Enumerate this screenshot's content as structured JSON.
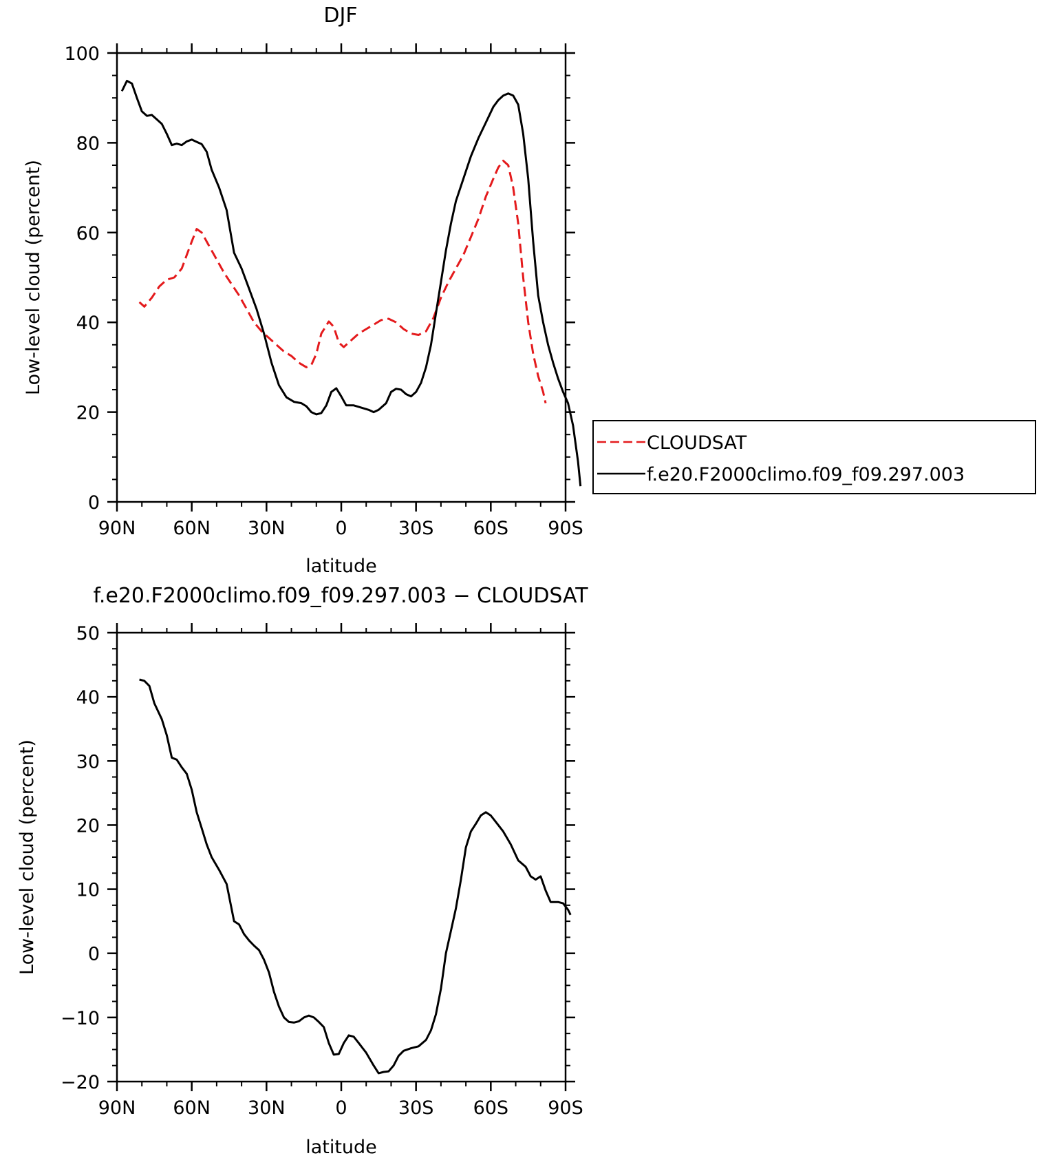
{
  "chart_data": [
    {
      "type": "line",
      "title": "DJF",
      "xlabel": "latitude",
      "ylabel": "Low-level cloud (percent)",
      "xlim": [
        90,
        -90
      ],
      "ylim": [
        0,
        100
      ],
      "x_ticks": [
        {
          "value": 90,
          "label": "90N"
        },
        {
          "value": 60,
          "label": "60N"
        },
        {
          "value": 30,
          "label": "30N"
        },
        {
          "value": 0,
          "label": "0"
        },
        {
          "value": -30,
          "label": "30S"
        },
        {
          "value": -60,
          "label": "60S"
        },
        {
          "value": -90,
          "label": "90S"
        }
      ],
      "y_ticks": [
        0,
        20,
        40,
        60,
        80,
        100
      ],
      "legend_position": "right",
      "series": [
        {
          "name": "CLOUDSAT",
          "color": "#e41a1c",
          "dash": "dashed",
          "points": [
            [
              81,
              44.5
            ],
            [
              79,
              43.5
            ],
            [
              76,
              45.5
            ],
            [
              73,
              48
            ],
            [
              70,
              49.5
            ],
            [
              67,
              50
            ],
            [
              64,
              52
            ],
            [
              62,
              55
            ],
            [
              60,
              58
            ],
            [
              58,
              60.8
            ],
            [
              56,
              60
            ],
            [
              53,
              57
            ],
            [
              50,
              54
            ],
            [
              47,
              51
            ],
            [
              44,
              48.5
            ],
            [
              41,
              46
            ],
            [
              38,
              43
            ],
            [
              35,
              40
            ],
            [
              32,
              38
            ],
            [
              29,
              36.5
            ],
            [
              26,
              35
            ],
            [
              23,
              33.5
            ],
            [
              20,
              32.5
            ],
            [
              17,
              31
            ],
            [
              14,
              30
            ],
            [
              12,
              30.5
            ],
            [
              10,
              33
            ],
            [
              8,
              37.5
            ],
            [
              5,
              40.2
            ],
            [
              3,
              39
            ],
            [
              1,
              35.5
            ],
            [
              -1,
              34.5
            ],
            [
              -4,
              36
            ],
            [
              -7,
              37.5
            ],
            [
              -10,
              38.5
            ],
            [
              -13,
              39.5
            ],
            [
              -16,
              40.5
            ],
            [
              -19,
              40.8
            ],
            [
              -22,
              40
            ],
            [
              -25,
              38.5
            ],
            [
              -28,
              37.5
            ],
            [
              -31,
              37.2
            ],
            [
              -34,
              38
            ],
            [
              -37,
              41
            ],
            [
              -40,
              45.5
            ],
            [
              -43,
              49
            ],
            [
              -46,
              52
            ],
            [
              -49,
              55
            ],
            [
              -52,
              59
            ],
            [
              -55,
              63
            ],
            [
              -58,
              68
            ],
            [
              -61,
              72
            ],
            [
              -63,
              74.5
            ],
            [
              -65,
              76
            ],
            [
              -67,
              75
            ],
            [
              -69,
              70
            ],
            [
              -71,
              62
            ],
            [
              -73,
              50
            ],
            [
              -75,
              40
            ],
            [
              -77,
              33
            ],
            [
              -79,
              28
            ],
            [
              -81,
              24.5
            ],
            [
              -82,
              22
            ]
          ]
        },
        {
          "name": "f.e20.F2000climo.f09_f09.297.003",
          "color": "#000000",
          "dash": "solid",
          "points": [
            [
              88,
              91.5
            ],
            [
              86,
              93.8
            ],
            [
              84,
              93.2
            ],
            [
              82,
              90
            ],
            [
              80,
              87
            ],
            [
              78,
              86
            ],
            [
              76,
              86.2
            ],
            [
              74,
              85.2
            ],
            [
              72,
              84.2
            ],
            [
              70,
              82
            ],
            [
              68,
              79.5
            ],
            [
              66,
              79.8
            ],
            [
              64,
              79.5
            ],
            [
              62,
              80.3
            ],
            [
              60,
              80.7
            ],
            [
              58,
              80.2
            ],
            [
              56,
              79.7
            ],
            [
              54,
              78
            ],
            [
              52,
              74
            ],
            [
              49,
              70
            ],
            [
              46,
              65
            ],
            [
              43,
              55.5
            ],
            [
              40,
              52
            ],
            [
              37,
              47.5
            ],
            [
              34,
              43
            ],
            [
              31,
              37.5
            ],
            [
              28,
              31
            ],
            [
              25,
              26
            ],
            [
              22,
              23.3
            ],
            [
              19,
              22.3
            ],
            [
              16,
              22
            ],
            [
              14,
              21.3
            ],
            [
              12,
              20
            ],
            [
              10,
              19.5
            ],
            [
              8,
              19.8
            ],
            [
              6,
              21.5
            ],
            [
              4,
              24.5
            ],
            [
              2,
              25.3
            ],
            [
              0,
              23.5
            ],
            [
              -2,
              21.5
            ],
            [
              -5,
              21.5
            ],
            [
              -8,
              21
            ],
            [
              -11,
              20.5
            ],
            [
              -13,
              20
            ],
            [
              -15,
              20.5
            ],
            [
              -18,
              22
            ],
            [
              -20,
              24.5
            ],
            [
              -22,
              25.2
            ],
            [
              -24,
              25
            ],
            [
              -26,
              24
            ],
            [
              -28,
              23.5
            ],
            [
              -30,
              24.5
            ],
            [
              -32,
              26.5
            ],
            [
              -34,
              30
            ],
            [
              -36,
              35
            ],
            [
              -38,
              42
            ],
            [
              -40,
              49
            ],
            [
              -42,
              56
            ],
            [
              -44,
              62
            ],
            [
              -46,
              67
            ],
            [
              -49,
              72
            ],
            [
              -52,
              77
            ],
            [
              -55,
              81
            ],
            [
              -58,
              84.5
            ],
            [
              -61,
              88
            ],
            [
              -63,
              89.5
            ],
            [
              -65,
              90.5
            ],
            [
              -67,
              91
            ],
            [
              -69,
              90.5
            ],
            [
              -71,
              88.5
            ],
            [
              -73,
              82
            ],
            [
              -75,
              72
            ],
            [
              -77,
              58
            ],
            [
              -79,
              46
            ],
            [
              -81,
              40
            ],
            [
              -83,
              35
            ],
            [
              -85,
              31
            ],
            [
              -87,
              27.5
            ],
            [
              -89,
              24.5
            ],
            [
              -91,
              22
            ],
            [
              -93,
              17
            ],
            [
              -95,
              9
            ],
            [
              -96,
              3.5
            ]
          ]
        }
      ]
    },
    {
      "type": "line",
      "title": "f.e20.F2000climo.f09_f09.297.003 − CLOUDSAT",
      "xlabel": "latitude",
      "ylabel": "Low-level cloud (percent)",
      "xlim": [
        90,
        -90
      ],
      "ylim": [
        -20,
        50
      ],
      "x_ticks": [
        {
          "value": 90,
          "label": "90N"
        },
        {
          "value": 60,
          "label": "60N"
        },
        {
          "value": 30,
          "label": "30N"
        },
        {
          "value": 0,
          "label": "0"
        },
        {
          "value": -30,
          "label": "30S"
        },
        {
          "value": -60,
          "label": "60S"
        },
        {
          "value": -90,
          "label": "90S"
        }
      ],
      "y_ticks": [
        -20,
        -10,
        0,
        10,
        20,
        30,
        40,
        50
      ],
      "series": [
        {
          "color": "#000000",
          "dash": "solid",
          "points": [
            [
              81,
              42.7
            ],
            [
              79,
              42.5
            ],
            [
              77,
              41.7
            ],
            [
              75,
              39
            ],
            [
              72,
              36.5
            ],
            [
              70,
              34
            ],
            [
              68,
              30.5
            ],
            [
              66,
              30.2
            ],
            [
              64,
              29
            ],
            [
              62,
              28
            ],
            [
              60,
              25.5
            ],
            [
              58,
              22
            ],
            [
              56,
              19.5
            ],
            [
              54,
              17
            ],
            [
              52,
              15
            ],
            [
              49,
              13
            ],
            [
              46,
              10.8
            ],
            [
              43,
              5
            ],
            [
              41,
              4.5
            ],
            [
              39,
              3
            ],
            [
              37,
              2
            ],
            [
              35,
              1.2
            ],
            [
              33,
              0.5
            ],
            [
              31,
              -1
            ],
            [
              29,
              -3
            ],
            [
              27,
              -6
            ],
            [
              25,
              -8.3
            ],
            [
              23,
              -10
            ],
            [
              21,
              -10.7
            ],
            [
              19,
              -10.8
            ],
            [
              17,
              -10.6
            ],
            [
              15,
              -10
            ],
            [
              13,
              -9.7
            ],
            [
              11,
              -10
            ],
            [
              9,
              -10.7
            ],
            [
              7,
              -11.5
            ],
            [
              5,
              -14
            ],
            [
              3,
              -15.8
            ],
            [
              1,
              -15.7
            ],
            [
              -1,
              -14
            ],
            [
              -3,
              -12.8
            ],
            [
              -5,
              -13
            ],
            [
              -7,
              -14
            ],
            [
              -10,
              -15.5
            ],
            [
              -13,
              -17.5
            ],
            [
              -15,
              -18.7
            ],
            [
              -17,
              -18.5
            ],
            [
              -19,
              -18.4
            ],
            [
              -21,
              -17.5
            ],
            [
              -23,
              -16
            ],
            [
              -25,
              -15.2
            ],
            [
              -28,
              -14.8
            ],
            [
              -31,
              -14.5
            ],
            [
              -34,
              -13.5
            ],
            [
              -36,
              -12
            ],
            [
              -38,
              -9.5
            ],
            [
              -40,
              -5.5
            ],
            [
              -42,
              0
            ],
            [
              -44,
              3.5
            ],
            [
              -46,
              7
            ],
            [
              -48,
              11.5
            ],
            [
              -50,
              16.5
            ],
            [
              -52,
              19
            ],
            [
              -54,
              20.2
            ],
            [
              -56,
              21.5
            ],
            [
              -58,
              22
            ],
            [
              -60,
              21.5
            ],
            [
              -62,
              20.5
            ],
            [
              -65,
              19
            ],
            [
              -68,
              17
            ],
            [
              -71,
              14.5
            ],
            [
              -74,
              13.5
            ],
            [
              -76,
              12
            ],
            [
              -78,
              11.5
            ],
            [
              -80,
              12
            ],
            [
              -82,
              9.8
            ],
            [
              -84,
              8
            ],
            [
              -87,
              8
            ],
            [
              -89,
              7.8
            ],
            [
              -91,
              6.8
            ],
            [
              -92,
              6
            ]
          ]
        }
      ]
    }
  ]
}
